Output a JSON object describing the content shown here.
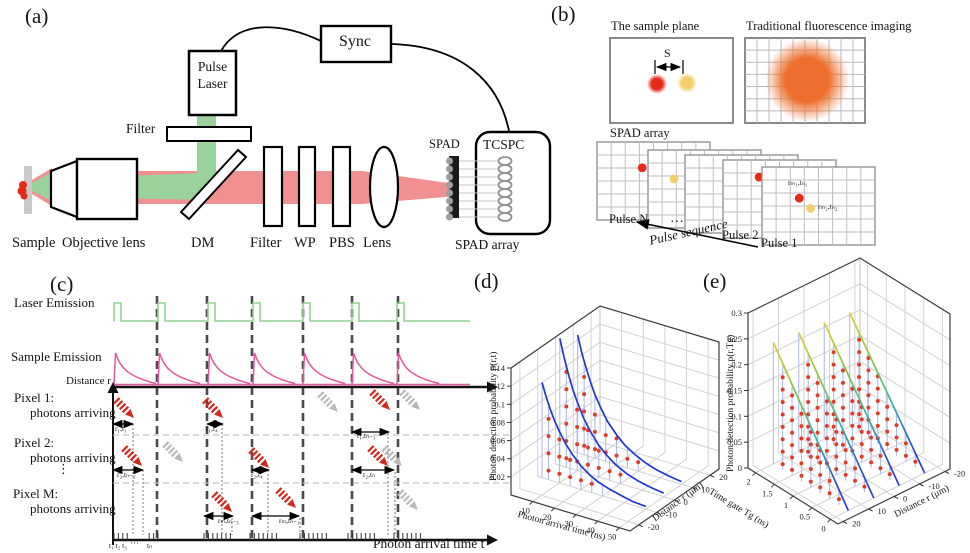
{
  "panels": {
    "a": {
      "label": "(a)",
      "sync": "Sync",
      "pulse_laser_line1": "Pulse",
      "pulse_laser_line2": "Laser",
      "filter_top": "Filter",
      "spad": "SPAD",
      "tcspc": "TCSPC",
      "sample": "Sample",
      "objective": "Objective lens",
      "dm": "DM",
      "filter": "Filter",
      "wp": "WP",
      "pbs": "PBS",
      "lens": "Lens",
      "spad_array": "SPAD array"
    },
    "b": {
      "label": "(b)",
      "sample_plane_title": "The sample plane",
      "trad_title": "Traditional fluorescence imaging",
      "s_label": "S",
      "spad_array": "SPAD array",
      "pulse_n": "Pulse N",
      "dots": "···",
      "pulse_2": "Pulse 2",
      "pulse_1": "Pulse 1",
      "pulse_sequence": "Pulse sequence",
      "photon1_label": "rₘ₁,tₙ₁",
      "photon2_label": "rₘ₂,tₙ₂",
      "grids": [
        {
          "red": [
            0.4,
            0.33
          ],
          "yellow": [
            0.67,
            0.47
          ]
        },
        {
          "red": [
            0.58,
            0.25
          ],
          "yellow": [
            0.23,
            0.37
          ]
        },
        {
          "red": [
            0.37,
            0.27
          ],
          "yellow": [
            0.55,
            0.45
          ]
        },
        {
          "red": [
            0.32,
            0.22
          ],
          "yellow": [
            0.48,
            0.4
          ]
        },
        {
          "red": [
            0.33,
            0.4
          ],
          "yellow": [
            0.43,
            0.53
          ]
        }
      ]
    },
    "c": {
      "label": "(c)",
      "laser_emission": "Laser Emission",
      "sample_emission": "Sample Emission",
      "distance_axis": "Distance r",
      "pixel1": "Pixel 1:",
      "pixel2": "Pixel 2:",
      "pixelM": "Pixel M:",
      "photons_arriving": "photons arriving",
      "vdots": "⋮",
      "time_axis": "Photon arrival time t",
      "t_ticks_start": "t₁ t₂ t₃",
      "t_ticks_dots": "···",
      "t_ticks_end": "tₙ",
      "events": {
        "p1a": "r₁,t₁",
        "p1b": "r₁,t₄",
        "p1c": "r₁,tₙ₋₁",
        "p2a": "r₂,tₙ₋₂",
        "p2b": "r₂,t₄",
        "p2c": "r₂,tₙ",
        "pMa": "rₘ,tₙ₋₃",
        "pMb": "rₘ,tₙ₋₁"
      }
    },
    "d": {
      "label": "(d)"
    },
    "e": {
      "label": "(e)"
    }
  },
  "chart_data": [
    {
      "panel": "d",
      "type": "3d-curves",
      "zlabel": "Photon detection probability p(r,t)",
      "xlabel": "Photon arrival time (ns)",
      "ylabel": "Distance r (μm)",
      "x_ticks": [
        "10",
        "20",
        "30",
        "40",
        "50"
      ],
      "y_ticks": [
        "-20",
        "-10",
        "0",
        "10",
        "20"
      ],
      "z_ticks": [
        "0.02",
        "0.04",
        "0.06",
        "0.08",
        "0.1",
        "0.12",
        "0.14"
      ],
      "xlim": [
        0,
        55
      ],
      "ylim": [
        -25,
        25
      ],
      "zlim": [
        0,
        0.14
      ],
      "dots_x": [
        5,
        10,
        15,
        20,
        25,
        30
      ],
      "dot_step": 0.019,
      "dot_start": 0.01,
      "line_color": "#2136d8",
      "series": [
        {
          "r": 10,
          "x": [
            2,
            4,
            6,
            8,
            10,
            13,
            16,
            20,
            24,
            28,
            33,
            38,
            44,
            50
          ],
          "p": [
            0.13,
            0.111,
            0.096,
            0.082,
            0.07,
            0.056,
            0.044,
            0.033,
            0.024,
            0.018,
            0.012,
            0.008,
            0.005,
            0.003
          ],
          "dots_p": [
            0.103,
            0.07,
            0.048,
            0.033,
            0.022,
            0.015
          ]
        },
        {
          "r": 0,
          "x": [
            2,
            4,
            6,
            8,
            10,
            13,
            16,
            20,
            24,
            28,
            33,
            38,
            44,
            50
          ],
          "p": [
            0.14,
            0.12,
            0.103,
            0.088,
            0.076,
            0.06,
            0.048,
            0.035,
            0.026,
            0.019,
            0.013,
            0.009,
            0.006,
            0.004
          ],
          "dots_p": [
            0.111,
            0.076,
            0.052,
            0.035,
            0.024,
            0.016
          ]
        },
        {
          "r": -10,
          "x": [
            2,
            4,
            6,
            8,
            10,
            13,
            16,
            20,
            24,
            28,
            33,
            38,
            44,
            50
          ],
          "p": [
            0.105,
            0.09,
            0.077,
            0.066,
            0.057,
            0.045,
            0.036,
            0.026,
            0.019,
            0.014,
            0.01,
            0.007,
            0.004,
            0.003
          ],
          "dots_p": [
            0.083,
            0.057,
            0.039,
            0.026,
            0.018,
            0.012
          ]
        }
      ]
    },
    {
      "panel": "e",
      "type": "3d-lines",
      "zlabel": "Photon detection probability p(r,Tg)",
      "xlabel": "Time gate Tg (ns)",
      "ylabel": "Distance r (μm)",
      "x_ticks": [
        "2",
        "1.5",
        "1",
        "0.5",
        "0"
      ],
      "y_ticks": [
        "20",
        "10",
        "0",
        "-10",
        "-20"
      ],
      "z_ticks": [
        "0",
        "0.05",
        "0.1",
        "0.15",
        "0.2",
        "0.25",
        "0.3"
      ],
      "xlim": [
        2.2,
        -0.2
      ],
      "ylim": [
        22,
        -22
      ],
      "zlim": [
        0,
        0.3
      ],
      "dots_x": [
        1.75,
        1.5,
        1.25,
        1,
        0.75,
        0.5,
        0.25
      ],
      "dot_step": 0.024,
      "dot_start": 0.011,
      "line_gradient": true,
      "series": [
        {
          "r": 15,
          "x": [
            2,
            0
          ],
          "p": [
            0.235,
            0
          ],
          "dots_p": [
            0.206,
            0.176,
            0.147,
            0.118,
            0.088,
            0.059,
            0.029
          ]
        },
        {
          "r": 5,
          "x": [
            2,
            0
          ],
          "p": [
            0.23,
            0
          ],
          "dots_p": [
            0.201,
            0.173,
            0.144,
            0.115,
            0.086,
            0.058,
            0.029
          ]
        },
        {
          "r": -5,
          "x": [
            2,
            0
          ],
          "p": [
            0.225,
            0
          ],
          "dots_p": [
            0.197,
            0.169,
            0.141,
            0.113,
            0.084,
            0.056,
            0.028
          ]
        },
        {
          "r": -15,
          "x": [
            2,
            0
          ],
          "p": [
            0.22,
            0
          ],
          "dots_p": [
            0.193,
            0.165,
            0.138,
            0.11,
            0.083,
            0.055,
            0.028
          ]
        }
      ]
    }
  ],
  "colors": {
    "beam_green": "#9ad29c",
    "beam_pink": "#f19090",
    "laser_pulse_green": "#92d292",
    "emission_pink": "#e8559f",
    "photon_red": "#d5281c",
    "photon_gray": "#b9b9b9",
    "curve_blue": "#2136d8",
    "dot_red": "#e03c28",
    "stem_blue": "#a9b6e8",
    "blob_orange": "#ee6f2d",
    "spot_red": "#e42b18",
    "spot_yellow": "#f2cf6d"
  }
}
